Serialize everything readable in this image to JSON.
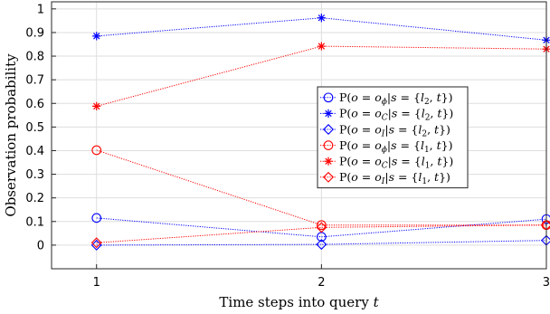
{
  "chart_data": {
    "type": "line",
    "xlabel": "Time steps into query t",
    "ylabel": "Observation probability",
    "x": [
      1,
      2,
      3
    ],
    "x_ticks": [
      "1",
      "2",
      "3"
    ],
    "y_ticks": [
      "0",
      "0.1",
      "0.2",
      "0.3",
      "0.4",
      "0.5",
      "0.6",
      "0.7",
      "0.8",
      "0.9",
      "1"
    ],
    "xlim": [
      0.8,
      3
    ],
    "ylim": [
      -0.1,
      1.03
    ],
    "grid": true,
    "legend_position": "center-right",
    "series": [
      {
        "name": "P(o = o_φ | s = {l_2, t})",
        "values": [
          0.115,
          0.035,
          0.11
        ],
        "color": "#0000ff",
        "marker": "circle",
        "style": "dotted"
      },
      {
        "name": "P(o = o_C | s = {l_2, t})",
        "values": [
          0.885,
          0.962,
          0.868
        ],
        "color": "#0000ff",
        "marker": "star",
        "style": "dotted"
      },
      {
        "name": "P(o = o_I | s = {l_2, t})",
        "values": [
          0.0,
          0.003,
          0.02
        ],
        "color": "#0000ff",
        "marker": "diamond",
        "style": "dotted"
      },
      {
        "name": "P(o = o_φ | s = {l_1, t})",
        "values": [
          0.402,
          0.085,
          0.085
        ],
        "color": "#ff0000",
        "marker": "circle",
        "style": "dotted"
      },
      {
        "name": "P(o = o_C | s = {l_1, t})",
        "values": [
          0.588,
          0.842,
          0.83
        ],
        "color": "#ff0000",
        "marker": "star",
        "style": "dotted"
      },
      {
        "name": "P(o = o_I | s = {l_1, t})",
        "values": [
          0.01,
          0.075,
          0.085
        ],
        "color": "#ff0000",
        "marker": "diamond",
        "style": "dotted"
      }
    ],
    "legend_labels": [
      {
        "pre": "P(o = o",
        "sub": "ϕ",
        "mid": "|s = {l",
        "sub2": "2",
        "post": ", t})"
      },
      {
        "pre": "P(o = o",
        "sub": "C",
        "mid": "|s = {l",
        "sub2": "2",
        "post": ", t})"
      },
      {
        "pre": "P(o = o",
        "sub": "I",
        "mid": "|s = {l",
        "sub2": "2",
        "post": ", t})"
      },
      {
        "pre": "P(o = o",
        "sub": "ϕ",
        "mid": "|s = {l",
        "sub2": "1",
        "post": ", t})"
      },
      {
        "pre": "P(o = o",
        "sub": "C",
        "mid": "|s = {l",
        "sub2": "1",
        "post": ", t})"
      },
      {
        "pre": "P(o = o",
        "sub": "I",
        "mid": "|s = {l",
        "sub2": "1",
        "post": ", t})"
      }
    ]
  }
}
